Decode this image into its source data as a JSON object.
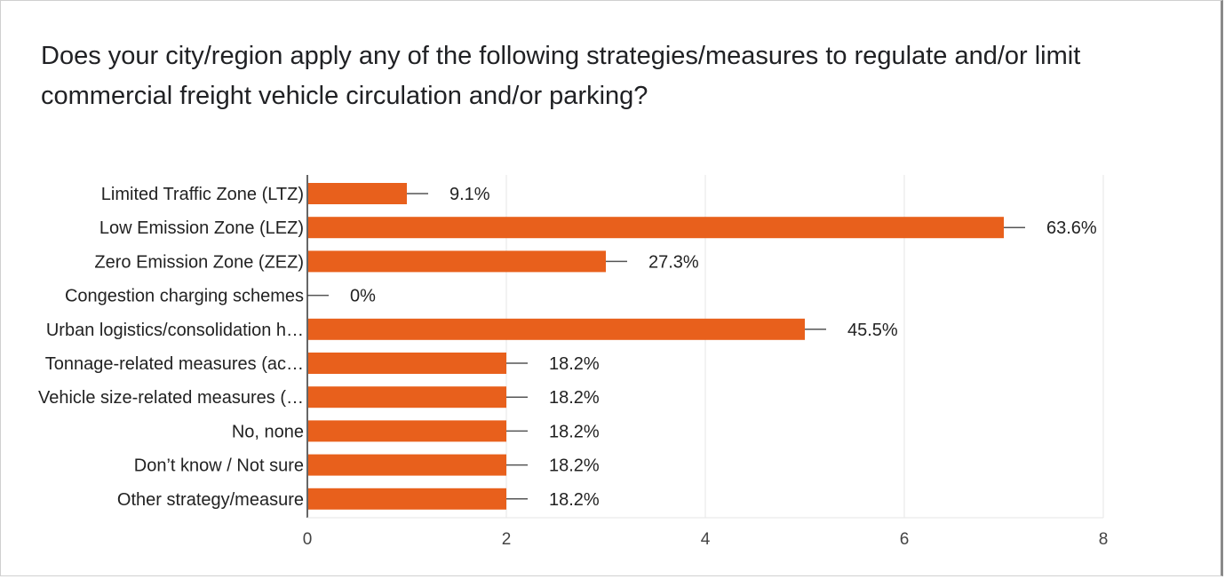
{
  "question": "Does your city/region apply any of the following strategies/measures to regulate and/or limit commercial freight vehicle circulation and/or parking?",
  "colors": {
    "bar": "#e8601c",
    "grid": "#e6e6e6",
    "axis": "#333333",
    "error": "#555555"
  },
  "chart_data": {
    "type": "bar",
    "orientation": "horizontal",
    "categories": [
      "Limited Traffic Zone (LTZ)",
      "Low Emission Zone (LEZ)",
      "Zero Emission Zone (ZEZ)",
      "Congestion charging schemes",
      "Urban logistics/consolidation h…",
      "Tonnage-related measures (ac…",
      "Vehicle size-related measures (…",
      "No, none",
      "Don’t know / Not sure",
      "Other strategy/measure"
    ],
    "values": [
      1,
      7,
      3,
      0,
      5,
      2,
      2,
      2,
      2,
      2
    ],
    "data_labels": [
      "9.1%",
      "63.6%",
      "27.3%",
      "0%",
      "45.5%",
      "18.2%",
      "18.2%",
      "18.2%",
      "18.2%",
      "18.2%"
    ],
    "xlim": [
      0,
      8
    ],
    "xticks": [
      "0",
      "2",
      "4",
      "6",
      "8"
    ],
    "grid": true,
    "error_bars": true
  }
}
